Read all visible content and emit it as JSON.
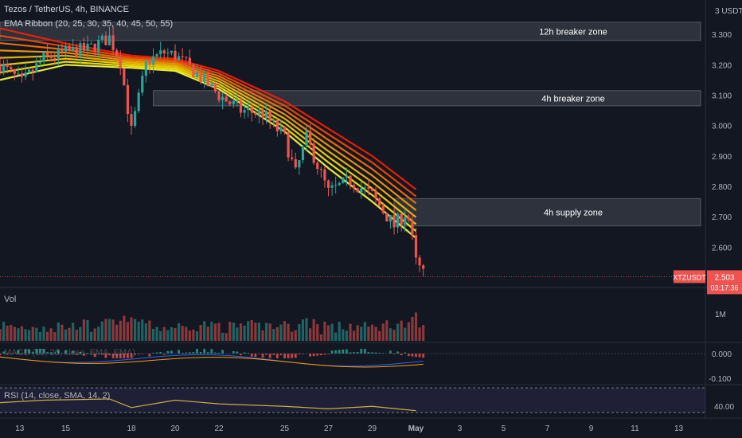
{
  "header": {
    "symbol_line": "Tezos / TetherUS, 4h, BINANCE",
    "indicator_line": "EMA Ribbon (20, 25, 30, 35, 40, 45, 50, 55)"
  },
  "panes": {
    "volume_label": "Vol",
    "macd_label": "MACD (12, 26, close, EMA, EMA)",
    "rsi_label": "RSI (14, close, SMA, 14, 2)"
  },
  "price_axis": {
    "unit": "USDT",
    "unit_label": "3 USDT",
    "ticks": [
      "3.300",
      "3.200",
      "3.100",
      "3.000",
      "2.900",
      "2.800",
      "2.700",
      "2.600"
    ]
  },
  "volume_axis": {
    "ticks": [
      "1M"
    ]
  },
  "macd_axis": {
    "ticks": [
      "0.000",
      "-0.100"
    ]
  },
  "rsi_axis": {
    "ticks": [
      "40.00"
    ]
  },
  "last_price": {
    "symbol": "XTZUSDT",
    "price": "2.503",
    "countdown": "03:17:36",
    "value": 2.503
  },
  "time_axis": {
    "ticks": [
      "13",
      "15",
      "18",
      "20",
      "22",
      "25",
      "27",
      "29",
      "May",
      "3",
      "5",
      "7",
      "9",
      "11",
      "13"
    ]
  },
  "colors": {
    "background": "#131722",
    "up": "#26a69a",
    "down": "#ef5350",
    "zone": "#787b86",
    "rsi_line": "#c9b046",
    "macd_line": "#2962ff",
    "signal_line": "#ff9800",
    "ribbon": [
      "#ff1e00",
      "#ff4a00",
      "#ff7400",
      "#ff9d00",
      "#ffbf00",
      "#ffd900",
      "#fff200",
      "#ffff40"
    ]
  },
  "chart_data": {
    "type": "candlestick",
    "title": "Tezos / TetherUS, 4h, BINANCE",
    "interval": "4h",
    "ylim": [
      2.47,
      3.4
    ],
    "x_range": [
      "Apr 12",
      "May 14"
    ],
    "zones": [
      {
        "label": "12h breaker zone",
        "y_low": 3.28,
        "y_high": 3.34,
        "x_start": "Apr 12",
        "x_end": "May 14"
      },
      {
        "label": "4h breaker zone",
        "y_low": 3.065,
        "y_high": 3.115,
        "x_start": "Apr 19",
        "x_end": "May 14"
      },
      {
        "label": "4h supply zone",
        "y_low": 2.67,
        "y_high": 2.76,
        "x_start": "Apr 30",
        "x_end": "May 14"
      }
    ],
    "ema_ribbon_periods": [
      20,
      25,
      30,
      35,
      40,
      45,
      50,
      55
    ],
    "ema_ribbon_top_path": [
      {
        "x": "Apr 12",
        "y": 3.32
      },
      {
        "x": "Apr 15",
        "y": 3.27
      },
      {
        "x": "Apr 18",
        "y": 3.23
      },
      {
        "x": "Apr 20",
        "y": 3.22
      },
      {
        "x": "Apr 22",
        "y": 3.18
      },
      {
        "x": "Apr 25",
        "y": 3.08
      },
      {
        "x": "Apr 27",
        "y": 2.99
      },
      {
        "x": "Apr 29",
        "y": 2.9
      },
      {
        "x": "May 1",
        "y": 2.79
      }
    ],
    "ema_ribbon_bottom_path": [
      {
        "x": "Apr 12",
        "y": 3.15
      },
      {
        "x": "Apr 15",
        "y": 3.2
      },
      {
        "x": "Apr 18",
        "y": 3.19
      },
      {
        "x": "Apr 20",
        "y": 3.18
      },
      {
        "x": "Apr 22",
        "y": 3.12
      },
      {
        "x": "Apr 25",
        "y": 2.98
      },
      {
        "x": "Apr 27",
        "y": 2.86
      },
      {
        "x": "Apr 29",
        "y": 2.75
      },
      {
        "x": "May 1",
        "y": 2.63
      }
    ],
    "price_path": [
      {
        "x": "Apr 12",
        "y": 3.2
      },
      {
        "x": "Apr 13",
        "y": 3.14
      },
      {
        "x": "Apr 14",
        "y": 3.22
      },
      {
        "x": "Apr 15",
        "y": 3.24
      },
      {
        "x": "Apr 16",
        "y": 3.25
      },
      {
        "x": "Apr 17",
        "y": 3.29
      },
      {
        "x": "Apr 17.5",
        "y": 3.21
      },
      {
        "x": "Apr 18",
        "y": 2.98
      },
      {
        "x": "Apr 18.7",
        "y": 3.21
      },
      {
        "x": "Apr 19.5",
        "y": 3.24
      },
      {
        "x": "Apr 20",
        "y": 3.23
      },
      {
        "x": "Apr 21",
        "y": 3.17
      },
      {
        "x": "Apr 22",
        "y": 3.1
      },
      {
        "x": "Apr 23",
        "y": 3.05
      },
      {
        "x": "Apr 24",
        "y": 3.04
      },
      {
        "x": "Apr 25",
        "y": 2.96
      },
      {
        "x": "Apr 25.5",
        "y": 2.84
      },
      {
        "x": "Apr 26",
        "y": 2.96
      },
      {
        "x": "Apr 27",
        "y": 2.78
      },
      {
        "x": "Apr 28",
        "y": 2.82
      },
      {
        "x": "Apr 29",
        "y": 2.77
      },
      {
        "x": "Apr 30",
        "y": 2.67
      },
      {
        "x": "Apr 30.6",
        "y": 2.72
      },
      {
        "x": "May 1",
        "y": 2.55
      },
      {
        "x": "May 1.4",
        "y": 2.503
      }
    ],
    "rsi_path": [
      {
        "x": "Apr 12",
        "y": 46
      },
      {
        "x": "Apr 14",
        "y": 50
      },
      {
        "x": "Apr 17",
        "y": 52
      },
      {
        "x": "Apr 18",
        "y": 38
      },
      {
        "x": "Apr 20",
        "y": 50
      },
      {
        "x": "Apr 22",
        "y": 44
      },
      {
        "x": "Apr 25",
        "y": 40
      },
      {
        "x": "Apr 27",
        "y": 36
      },
      {
        "x": "Apr 29",
        "y": 40
      },
      {
        "x": "May 1",
        "y": 33
      }
    ]
  }
}
